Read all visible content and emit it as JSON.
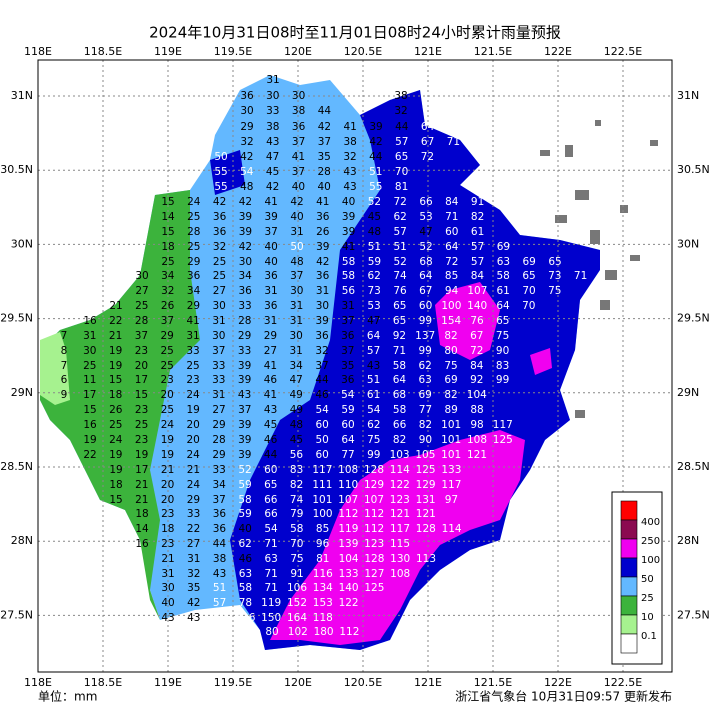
{
  "header": {
    "title": "2024年10月31日08时至11月01日08时24小时累计雨量预报"
  },
  "map": {
    "lon_labels": [
      "118E",
      "118.5E",
      "119E",
      "119.5E",
      "120E",
      "120.5E",
      "121E",
      "121.5E",
      "122E",
      "122.5E"
    ],
    "lat_labels": [
      "31N",
      "30.5N",
      "30N",
      "29.5N",
      "29N",
      "28.5N",
      "28N",
      "27.5N"
    ],
    "stations": [
      [
        31
      ],
      [
        36,
        30,
        30
      ],
      [
        38
      ],
      [
        30,
        33,
        38,
        44
      ],
      [
        32
      ],
      [
        29,
        38,
        36,
        42,
        41,
        39,
        44,
        64
      ],
      [
        32,
        43,
        37,
        37,
        38,
        42,
        57,
        67,
        71
      ],
      [
        50,
        42,
        47,
        41,
        35,
        32,
        44,
        65,
        72
      ],
      [
        55,
        54,
        45,
        37,
        28,
        43,
        51,
        70
      ],
      [
        55,
        48,
        42,
        40,
        40,
        43,
        55,
        81
      ],
      [
        15,
        24,
        42,
        42,
        41,
        42,
        41,
        40,
        52,
        72,
        66,
        84,
        91
      ],
      [
        14,
        25,
        36,
        39,
        39,
        40,
        36,
        39,
        45,
        62,
        53,
        71,
        82
      ],
      [
        15,
        28,
        36,
        39,
        37,
        31,
        26,
        39,
        48,
        57,
        47,
        60,
        61
      ],
      [
        18,
        25,
        32,
        42,
        40,
        50,
        39,
        41,
        51,
        51,
        52,
        64,
        57,
        69
      ],
      [
        25,
        29,
        25,
        30,
        40,
        48,
        42,
        58,
        59,
        52,
        68,
        72,
        57,
        63,
        69,
        65
      ],
      [
        30,
        34,
        36,
        25,
        34,
        36,
        37,
        36,
        58,
        62,
        74,
        64,
        85,
        84,
        58,
        65,
        73,
        71
      ],
      [
        27,
        32,
        34,
        27,
        36,
        31,
        30,
        31,
        56,
        73,
        76,
        67,
        94,
        107,
        61,
        70,
        75
      ],
      [
        21,
        25,
        26,
        29,
        30,
        33,
        36,
        31,
        30,
        31,
        53,
        65,
        60,
        100,
        140,
        64,
        70
      ],
      [
        16,
        22,
        28,
        37,
        41,
        31,
        28,
        31,
        31,
        39,
        37,
        47,
        65,
        99,
        154,
        76,
        65
      ],
      [
        7,
        31,
        21,
        37,
        29,
        31,
        30,
        29,
        29,
        30,
        36,
        36,
        64,
        92,
        137,
        82,
        67,
        75
      ],
      [
        8,
        30,
        19,
        23,
        25,
        33,
        37,
        33,
        27,
        31,
        32,
        37,
        57,
        71,
        99,
        80,
        72,
        90
      ],
      [
        7,
        25,
        19,
        20,
        25,
        25,
        33,
        39,
        41,
        34,
        37,
        35,
        43,
        58,
        62,
        75,
        84,
        83
      ],
      [
        6,
        11,
        15,
        17,
        23,
        23,
        33,
        39,
        46,
        47,
        44,
        36,
        51,
        64,
        63,
        69,
        92,
        99
      ],
      [
        9,
        17,
        18,
        15,
        20,
        24,
        31,
        43,
        41,
        49,
        46,
        54,
        61,
        68,
        69,
        82,
        104
      ],
      [
        15,
        26,
        23,
        25,
        19,
        27,
        37,
        43,
        49,
        54,
        59,
        54,
        58,
        77,
        89,
        88
      ],
      [
        16,
        25,
        25,
        24,
        20,
        29,
        39,
        45,
        48,
        60,
        60,
        62,
        66,
        82,
        101,
        98,
        117
      ],
      [
        19,
        24,
        23,
        19,
        20,
        28,
        39,
        46,
        45,
        50,
        64,
        75,
        82,
        90,
        101,
        108,
        125
      ],
      [
        22,
        19,
        19,
        19,
        24,
        29,
        39,
        44,
        56,
        60,
        77,
        99,
        103,
        105,
        101,
        121
      ],
      [
        19,
        17,
        21,
        21,
        33,
        52,
        60,
        83,
        117,
        108,
        128,
        114,
        125,
        133
      ],
      [
        18,
        21,
        20,
        24,
        34,
        59,
        65,
        82,
        111,
        110,
        129,
        122,
        129,
        117
      ],
      [
        15,
        21,
        20,
        29,
        37,
        58,
        66,
        74,
        101,
        107,
        107,
        123,
        131,
        97
      ],
      [
        18,
        23,
        33,
        36,
        59,
        66,
        79,
        100,
        112,
        112,
        121,
        121
      ],
      [
        14,
        18,
        22,
        36,
        40,
        54,
        58,
        85,
        119,
        112,
        117,
        128,
        114
      ],
      [
        16,
        23,
        27,
        44,
        62,
        71,
        70,
        96,
        139,
        123,
        115
      ],
      [
        21,
        31,
        38,
        46,
        63,
        75,
        81,
        104,
        128,
        130,
        113
      ],
      [
        31,
        32,
        43,
        63,
        71,
        91,
        116,
        133,
        127,
        108
      ],
      [
        30,
        35,
        51,
        58,
        71,
        106,
        134,
        140,
        125
      ],
      [
        40,
        42,
        57,
        78,
        119,
        152,
        153,
        122
      ],
      [
        43,
        43,
        80,
        116,
        150,
        164,
        118
      ],
      [
        80,
        102,
        180,
        112
      ]
    ]
  },
  "legend": {
    "labels": [
      "400",
      "250",
      "100",
      "50",
      "25",
      "10",
      "0.1"
    ],
    "colors": [
      "#ff0000",
      "#8b0a50",
      "#f000f0",
      "#0000cd",
      "#63b8ff",
      "#3cb33c",
      "#a6f28f",
      "#ffffff"
    ]
  },
  "footer": {
    "unit": "单位：mm",
    "source": "浙江省气象台 10月31日09:57 更新发布"
  }
}
